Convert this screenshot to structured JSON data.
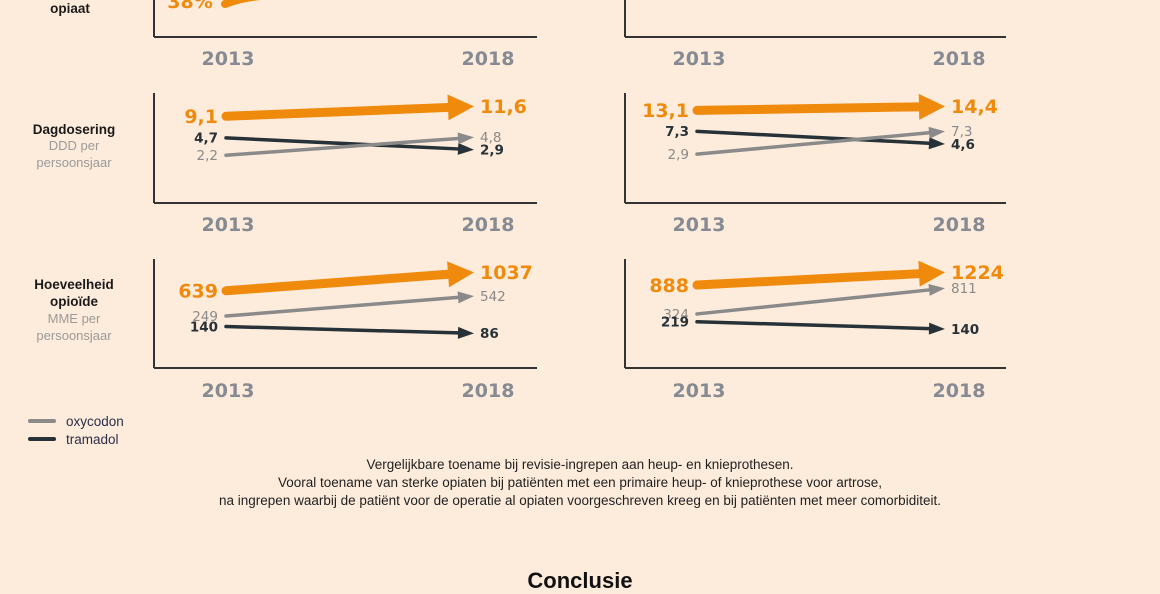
{
  "colors": {
    "background": "#fdecdc",
    "opiaat": "#f08a0c",
    "oxycodon": "#8a8a8a",
    "tramadol": "#263238",
    "axis": "#333333",
    "year": "#858a93"
  },
  "row_labels": [
    {
      "title": "opiaat",
      "subtitle": ""
    },
    {
      "title": "Dagdosering",
      "subtitle_lines": [
        "DDD per",
        "persoonsjaar"
      ]
    },
    {
      "title_lines": [
        "Hoeveelheid",
        "opioïde"
      ],
      "subtitle_lines": [
        "MME per",
        "persoonsjaar"
      ]
    }
  ],
  "legend": [
    {
      "name": "oxycodon",
      "color": "#8a8a8a"
    },
    {
      "name": "tramadol",
      "color": "#263238"
    }
  ],
  "caption": [
    "Vergelijkbare toename bij revisie-ingrepen aan heup- en knieprothesen.",
    "Vooral toename van sterke opiaten bij patiënten met een primaire heup- of knieprothese voor artrose,",
    "na ingrepen waarbij de patiënt voor de operatie al opiaten voorgeschreven kreeg en bij patiënten met meer comorbiditeit."
  ],
  "next_heading": "Conclusie",
  "chart_data": [
    {
      "type": "line",
      "id": "row1-left",
      "title": "opiaat (partially visible)",
      "categories": [
        "2013",
        "2018"
      ],
      "series": [
        {
          "name": "opiaat",
          "values": [
            "38%",
            null
          ],
          "partial": true
        }
      ]
    },
    {
      "type": "line",
      "id": "row1-right",
      "title": "(partially visible)",
      "categories": [
        "2013",
        "2018"
      ],
      "series": []
    },
    {
      "type": "line",
      "id": "dagdosering-left",
      "title": "Dagdosering — DDD per persoonsjaar",
      "categories": [
        "2013",
        "2018"
      ],
      "series": [
        {
          "name": "opiaat",
          "values": [
            9.1,
            11.6
          ],
          "labels": [
            "9,1",
            "11,6"
          ]
        },
        {
          "name": "tramadol",
          "values": [
            4.7,
            2.9
          ],
          "labels": [
            "4,7",
            "2,9"
          ]
        },
        {
          "name": "oxycodon",
          "values": [
            2.2,
            4.8
          ],
          "labels": [
            "2,2",
            "4,8"
          ]
        }
      ]
    },
    {
      "type": "line",
      "id": "dagdosering-right",
      "title": "Dagdosering — DDD per persoonsjaar",
      "categories": [
        "2013",
        "2018"
      ],
      "series": [
        {
          "name": "opiaat",
          "values": [
            13.1,
            14.4
          ],
          "labels": [
            "13,1",
            "14,4"
          ]
        },
        {
          "name": "tramadol",
          "values": [
            7.3,
            4.6
          ],
          "labels": [
            "7,3",
            "4,6"
          ]
        },
        {
          "name": "oxycodon",
          "values": [
            2.9,
            7.3
          ],
          "labels": [
            "2,9",
            "7,3"
          ]
        }
      ]
    },
    {
      "type": "line",
      "id": "hoeveelheid-left",
      "title": "Hoeveelheid opioïde — MME per persoonsjaar",
      "categories": [
        "2013",
        "2018"
      ],
      "series": [
        {
          "name": "opiaat",
          "values": [
            639,
            1037
          ],
          "labels": [
            "639",
            "1037"
          ]
        },
        {
          "name": "oxycodon",
          "values": [
            249,
            542
          ],
          "labels": [
            "249",
            "542"
          ]
        },
        {
          "name": "tramadol",
          "values": [
            140,
            86
          ],
          "labels": [
            "140",
            "86"
          ]
        }
      ]
    },
    {
      "type": "line",
      "id": "hoeveelheid-right",
      "title": "Hoeveelheid opioïde — MME per persoonsjaar",
      "categories": [
        "2013",
        "2018"
      ],
      "series": [
        {
          "name": "opiaat",
          "values": [
            888,
            1224
          ],
          "labels": [
            "888",
            "1224"
          ]
        },
        {
          "name": "oxycodon",
          "values": [
            324,
            811
          ],
          "labels": [
            "324",
            "811"
          ]
        },
        {
          "name": "tramadol",
          "values": [
            219,
            140
          ],
          "labels": [
            "219",
            "140"
          ]
        }
      ]
    }
  ]
}
